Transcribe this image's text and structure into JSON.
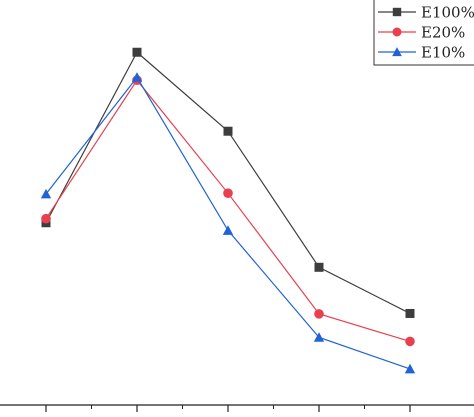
{
  "chart_data": {
    "type": "line",
    "title": "",
    "xlabel": "",
    "ylabel": "",
    "x": [
      1,
      2,
      3,
      4,
      5
    ],
    "ylim": [
      0,
      100
    ],
    "grid": false,
    "legend_position": "top-right",
    "series": [
      {
        "name": "E100%",
        "marker": "square",
        "color": "#3d3d3d",
        "values": [
          45.0,
          87.1,
          67.6,
          34.0,
          22.6
        ]
      },
      {
        "name": "E20%",
        "marker": "circle",
        "color": "#e8404f",
        "values": [
          46.0,
          80.2,
          52.3,
          22.5,
          15.7
        ]
      },
      {
        "name": "E10%",
        "marker": "triangle",
        "color": "#1f63d6",
        "values": [
          52.1,
          80.9,
          43.1,
          16.7,
          8.9
        ]
      }
    ]
  }
}
